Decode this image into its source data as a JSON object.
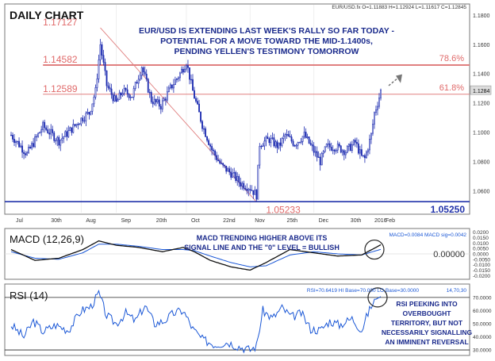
{
  "chart_title": "DAILY CHART",
  "symbol_info": "EUR/USD.fx O=1.11883 H=1.12924 L=1.11617 C=1.12845",
  "headline": [
    "EUR/USD IS EXTENDING LAST WEEK'S RALLY SO FAR TODAY -",
    "POTENTIAL FOR A MOVE TOWARD THE MID-1.1400s,",
    "PENDING YELLEN'S TESTIMONY TOMORROW"
  ],
  "colors": {
    "bull_body": "#ffffff",
    "bear_body": "#1c2bb0",
    "macd_line": "#111111",
    "signal_line": "#1a57d6",
    "rsi_line": "#1a57d6",
    "fib_line": "#e08080",
    "fib_text": "#e06a6a",
    "support_line": "#2233aa",
    "annotation_text": "#1a2a8c"
  },
  "chart_data": [
    {
      "type": "candlestick",
      "panel": "price",
      "series": "EUR/USD daily",
      "x_labels": [
        "Jul",
        "30th",
        "Aug",
        "Sep",
        "20th",
        "Oct",
        "22nd",
        "Nov",
        "25th",
        "Dec",
        "30th",
        "2016",
        "Feb"
      ],
      "y_ticks": [
        1.06,
        1.08,
        1.1,
        1.12,
        1.14,
        1.16,
        1.18
      ],
      "ylim": [
        1.045,
        1.187
      ],
      "current_price": "1.1284",
      "close_path": [
        [
          0,
          1.098
        ],
        [
          10,
          1.085
        ],
        [
          20,
          1.104
        ],
        [
          30,
          1.094
        ],
        [
          36,
          1.1
        ],
        [
          45,
          1.11
        ],
        [
          49,
          1.113
        ],
        [
          53,
          1.128
        ],
        [
          56,
          1.16
        ],
        [
          60,
          1.132
        ],
        [
          66,
          1.12
        ],
        [
          70,
          1.128
        ],
        [
          76,
          1.125
        ],
        [
          82,
          1.145
        ],
        [
          88,
          1.122
        ],
        [
          94,
          1.118
        ],
        [
          100,
          1.13
        ],
        [
          106,
          1.14
        ],
        [
          110,
          1.148
        ],
        [
          114,
          1.128
        ],
        [
          120,
          1.105
        ],
        [
          126,
          1.088
        ],
        [
          132,
          1.077
        ],
        [
          138,
          1.072
        ],
        [
          144,
          1.065
        ],
        [
          150,
          1.062
        ],
        [
          154,
          1.057
        ],
        [
          156,
          1.092
        ],
        [
          162,
          1.095
        ],
        [
          168,
          1.09
        ],
        [
          172,
          1.098
        ],
        [
          178,
          1.092
        ],
        [
          184,
          1.098
        ],
        [
          190,
          1.087
        ],
        [
          194,
          1.08
        ],
        [
          198,
          1.09
        ],
        [
          204,
          1.09
        ],
        [
          210,
          1.087
        ],
        [
          216,
          1.093
        ],
        [
          220,
          1.083
        ],
        [
          222,
          1.082
        ],
        [
          224,
          1.09
        ],
        [
          226,
          1.098
        ],
        [
          228,
          1.113
        ],
        [
          230,
          1.12
        ],
        [
          232,
          1.128
        ]
      ],
      "fib_levels": [
        {
          "label": "1.17127",
          "value": 1.17127
        },
        {
          "label": "1.14582",
          "value": 1.14582,
          "retracement": "78.6%"
        },
        {
          "label": "1.12589",
          "value": 1.12589,
          "retracement": "61.8%"
        },
        {
          "label": "1.05233",
          "value": 1.05233
        }
      ],
      "support": {
        "label": "1.05250",
        "value": 1.0525
      },
      "annotation": "projected move higher (dashed arrow)"
    },
    {
      "type": "line",
      "panel": "macd",
      "title": "MACD (12,26,9)",
      "readout": "MACD=0.0084 MACD sig=0.0042",
      "note": "MACD TRENDING HIGHER ABOVE ITS SIGNAL LINE AND THE \"0\" LEVEL = BULLISH",
      "y_ticks": [
        "0.0200",
        "0.0150",
        "0.0100",
        "0.0050",
        "0.0000",
        "-0.0050",
        "-0.0100",
        "-0.0150",
        "-0.0200"
      ],
      "zero_label": "0.00000",
      "ylim": [
        -0.022,
        0.022
      ],
      "macd": [
        [
          0,
          0.004
        ],
        [
          15,
          -0.006
        ],
        [
          30,
          -0.004
        ],
        [
          45,
          0.004
        ],
        [
          55,
          0.012
        ],
        [
          66,
          0.008
        ],
        [
          80,
          0.006
        ],
        [
          95,
          0.002
        ],
        [
          108,
          0.006
        ],
        [
          115,
          0.002
        ],
        [
          125,
          -0.006
        ],
        [
          138,
          -0.012
        ],
        [
          150,
          -0.015
        ],
        [
          160,
          -0.008
        ],
        [
          175,
          0.004
        ],
        [
          190,
          0.001
        ],
        [
          205,
          -0.002
        ],
        [
          220,
          -0.001
        ],
        [
          232,
          0.0084
        ]
      ],
      "signal": [
        [
          0,
          0.002
        ],
        [
          15,
          -0.004
        ],
        [
          30,
          -0.005
        ],
        [
          45,
          0.001
        ],
        [
          55,
          0.009
        ],
        [
          66,
          0.009
        ],
        [
          80,
          0.007
        ],
        [
          95,
          0.004
        ],
        [
          108,
          0.004
        ],
        [
          115,
          0.003
        ],
        [
          125,
          -0.002
        ],
        [
          138,
          -0.008
        ],
        [
          150,
          -0.012
        ],
        [
          160,
          -0.011
        ],
        [
          175,
          -0.001
        ],
        [
          190,
          0.002
        ],
        [
          205,
          0.0
        ],
        [
          220,
          -0.001
        ],
        [
          232,
          0.0042
        ]
      ]
    },
    {
      "type": "line",
      "panel": "rsi",
      "title": "RSI (14)",
      "readout": "RSI=70.6419 HI Base=70.000 LO Base=30.0000",
      "readout_right": "14,70,30",
      "note": "RSI PEEKING INTO OVERBOUGHT TERRITORY, BUT NOT NECESSARILY SIGNALLING AN IMMINENT REVERSAL",
      "y_ticks": [
        "70.0000",
        "60.0000",
        "50.0000",
        "40.0000",
        "30.0000"
      ],
      "ylim": [
        27,
        79
      ],
      "hi_base": 70,
      "lo_base": 30,
      "values": [
        [
          0,
          49
        ],
        [
          8,
          40
        ],
        [
          14,
          52
        ],
        [
          20,
          44
        ],
        [
          28,
          49
        ],
        [
          36,
          45
        ],
        [
          44,
          60
        ],
        [
          50,
          63
        ],
        [
          55,
          73
        ],
        [
          60,
          56
        ],
        [
          66,
          50
        ],
        [
          72,
          58
        ],
        [
          78,
          52
        ],
        [
          84,
          64
        ],
        [
          90,
          50
        ],
        [
          96,
          52
        ],
        [
          102,
          58
        ],
        [
          108,
          60
        ],
        [
          114,
          46
        ],
        [
          120,
          38
        ],
        [
          128,
          34
        ],
        [
          136,
          36
        ],
        [
          142,
          33
        ],
        [
          150,
          30
        ],
        [
          154,
          33
        ],
        [
          158,
          60
        ],
        [
          164,
          54
        ],
        [
          170,
          62
        ],
        [
          176,
          55
        ],
        [
          182,
          58
        ],
        [
          188,
          46
        ],
        [
          194,
          45
        ],
        [
          200,
          52
        ],
        [
          206,
          49
        ],
        [
          214,
          54
        ],
        [
          220,
          45
        ],
        [
          224,
          58
        ],
        [
          228,
          68
        ],
        [
          232,
          70.64
        ]
      ]
    }
  ]
}
